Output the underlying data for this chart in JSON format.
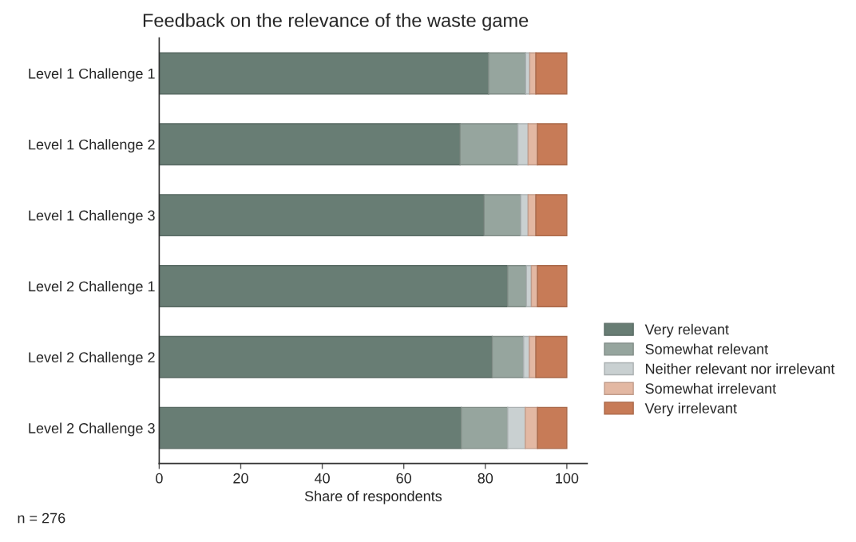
{
  "chart_data": {
    "type": "bar",
    "orientation": "horizontal",
    "stacked": true,
    "title": "Feedback on the relevance of the waste game",
    "xlabel": "Share of respondents",
    "categories": [
      "Level 1 Challenge 1",
      "Level 1 Challenge 2",
      "Level 1 Challenge 3",
      "Level 2 Challenge 1",
      "Level 2 Challenge 2",
      "Level 2 Challenge 3"
    ],
    "series": [
      {
        "name": "Very relevant",
        "color": "#687d74",
        "values": [
          80.8,
          73.8,
          79.7,
          85.5,
          81.7,
          74.1
        ]
      },
      {
        "name": "Somewhat relevant",
        "color": "#96a59e",
        "values": [
          9.1,
          14.2,
          9.0,
          4.6,
          7.7,
          11.4
        ]
      },
      {
        "name": "Neither relevant nor irrelevant",
        "color": "#c9d0d1",
        "values": [
          1.0,
          2.5,
          1.8,
          1.2,
          1.4,
          4.3
        ]
      },
      {
        "name": "Somewhat irrelevant",
        "color": "#e3b8a3",
        "values": [
          1.5,
          2.3,
          1.9,
          1.5,
          1.6,
          3.0
        ]
      },
      {
        "name": "Very irrelevant",
        "color": "#c77b57",
        "values": [
          7.6,
          7.2,
          7.6,
          7.2,
          7.6,
          7.2
        ]
      }
    ],
    "xlim": [
      0,
      105
    ],
    "xticks": [
      0,
      20,
      40,
      60,
      80,
      100
    ],
    "grid": false,
    "legend": "right",
    "annotations": [
      "n = 276"
    ]
  }
}
